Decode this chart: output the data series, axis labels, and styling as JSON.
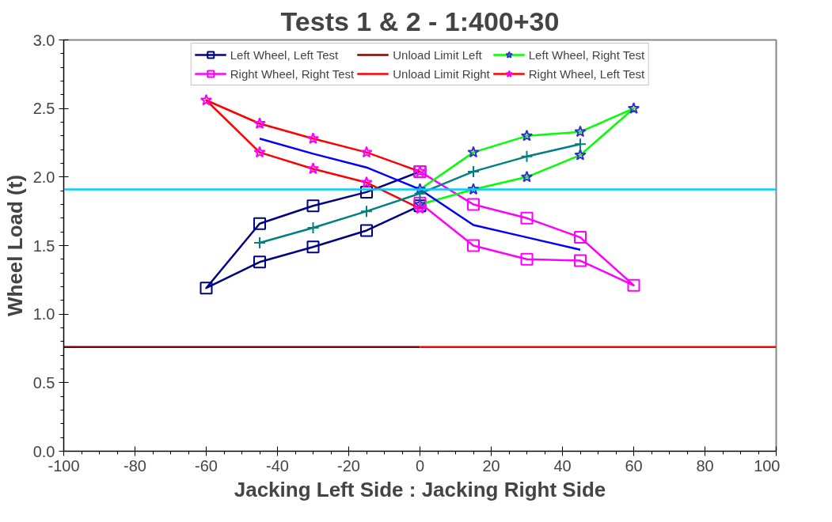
{
  "chart_data": {
    "type": "line",
    "title": "Tests 1 & 2 - 1:400+30",
    "xlabel": "Jacking Left Side : Jacking Right Side",
    "ylabel": "Wheel Load (t)",
    "xlim": [
      -100,
      100
    ],
    "xticks": [
      -100,
      -80,
      -60,
      -40,
      -20,
      0,
      20,
      40,
      60,
      80,
      100
    ],
    "ylim": [
      0,
      3
    ],
    "yticks": [
      {
        "value": 0,
        "label": "0.0"
      },
      0.5,
      {
        "value": 1,
        "label": "1.0"
      },
      1.5,
      {
        "value": 2,
        "label": "2.0"
      },
      2.5,
      {
        "value": 3,
        "label": "3.0"
      }
    ],
    "grid": false,
    "legend": "top",
    "series": [
      {
        "name": "Left Wheel, Left Test",
        "color": "#000080",
        "marker": "square",
        "colors": [
          "#000080",
          "#000080",
          "#000080",
          "#000080",
          "#000080",
          "#000080",
          "#000080",
          "#000080",
          "#000080"
        ],
        "x": [
          0,
          -15,
          -30,
          -45,
          -60,
          -45,
          -30,
          -15,
          0
        ],
        "values": [
          2.04,
          1.89,
          1.79,
          1.66,
          1.19,
          1.38,
          1.49,
          1.61,
          1.79
        ]
      },
      {
        "name": "Right Wheel, Right Test",
        "color": "#ff00ff",
        "marker": "square",
        "colors": [
          "#ff00ff",
          "#ff00ff",
          "#ff00ff",
          "#ff00ff",
          "#ff00ff",
          "#ff00ff",
          "#ff00ff",
          "#ff00ff",
          "#ff00ff"
        ],
        "x": [
          0,
          15,
          30,
          45,
          60,
          45,
          30,
          15,
          0
        ],
        "values": [
          2.04,
          1.8,
          1.7,
          1.56,
          1.21,
          1.39,
          1.4,
          1.5,
          1.81
        ]
      },
      {
        "name": "Unload Limit Left",
        "color": "#800000",
        "marker": "none",
        "x": [
          -100,
          0
        ],
        "values": [
          0.76,
          0.76
        ]
      },
      {
        "name": "Unload Limit Right",
        "color": "#ff0000",
        "marker": "none",
        "x": [
          0,
          100
        ],
        "values": [
          0.76,
          0.76
        ]
      },
      {
        "name": "Left Wheel, Right Test",
        "color": "#00ff00",
        "marker": "star",
        "colors": [
          "#3333cc",
          "#3333cc",
          "#3333cc",
          "#3333cc",
          "#3333cc",
          "#3333cc",
          "#3333cc",
          "#3333cc",
          "#3333cc"
        ],
        "x": [
          0,
          15,
          30,
          45,
          60,
          45,
          30,
          15,
          0
        ],
        "values": [
          1.91,
          2.18,
          2.3,
          2.33,
          2.5,
          2.16,
          2.0,
          1.91,
          1.8
        ]
      },
      {
        "name": "Right Wheel, Left Test",
        "color": "#ff0000",
        "marker": "star",
        "colors": [
          "#ff00ff",
          "#ff00ff",
          "#ff00ff",
          "#ff00ff",
          "#ff00ff",
          "#ff00ff",
          "#ff00ff",
          "#ff00ff",
          "#ff00ff"
        ],
        "x": [
          0,
          -15,
          -30,
          -45,
          -60,
          -45,
          -30,
          -15,
          0
        ],
        "values": [
          2.04,
          2.18,
          2.28,
          2.39,
          2.56,
          2.18,
          2.06,
          1.96,
          1.77
        ]
      },
      {
        "color": "#0000ff",
        "marker": "none",
        "x": [
          -45,
          -30,
          -15,
          0,
          15,
          30,
          45
        ],
        "values": [
          2.28,
          2.17,
          2.07,
          1.91,
          1.65,
          1.56,
          1.47
        ]
      },
      {
        "color": "#008080",
        "marker": "cross",
        "x": [
          -45,
          -30,
          -15,
          0,
          15,
          30,
          45
        ],
        "values": [
          1.52,
          1.63,
          1.75,
          1.88,
          2.04,
          2.15,
          2.24
        ]
      },
      {
        "color": "#00ccff",
        "marker": "none",
        "x": [
          -100,
          100
        ],
        "values": [
          1.91,
          1.91
        ]
      }
    ]
  }
}
